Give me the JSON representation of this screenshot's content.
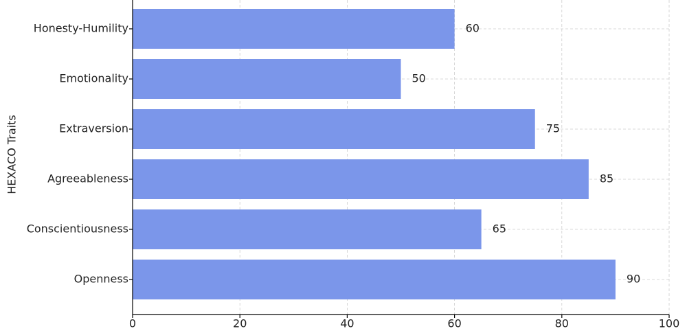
{
  "chart_data": {
    "type": "barh",
    "ylabel": "HEXACO Traits",
    "categories": [
      "Honesty-Humility",
      "Emotionality",
      "Extraversion",
      "Agreeableness",
      "Conscientiousness",
      "Openness"
    ],
    "values": [
      60,
      50,
      75,
      85,
      65,
      90
    ],
    "color": "#7b96ea",
    "xlim": [
      0,
      100
    ],
    "xticks": [
      0,
      20,
      40,
      60,
      80,
      100
    ],
    "grid": true
  }
}
